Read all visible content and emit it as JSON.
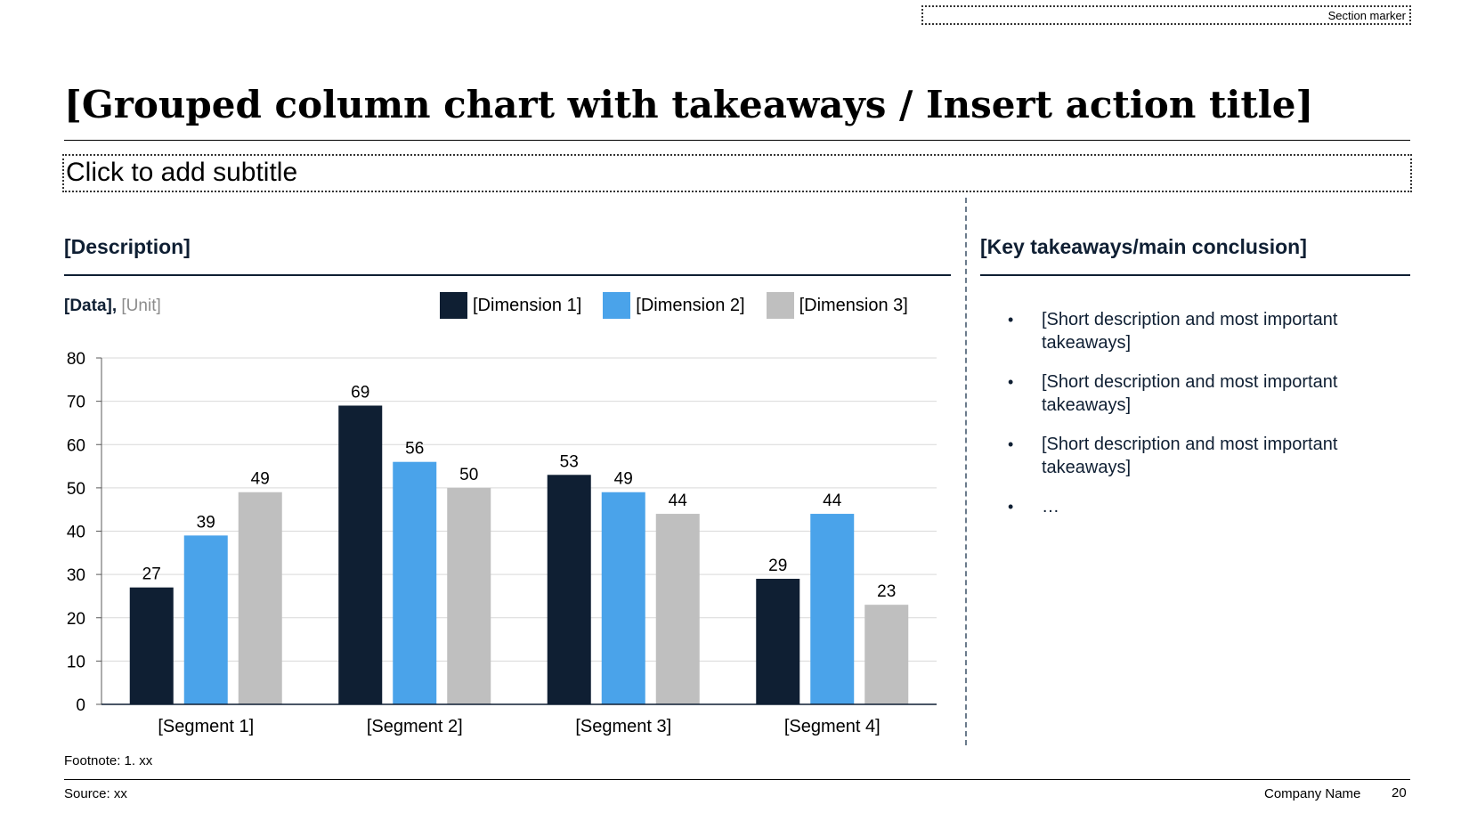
{
  "header": {
    "section_marker": "Section marker",
    "title": "[Grouped column chart with takeaways / Insert action title]",
    "subtitle": "Click to add subtitle"
  },
  "left_panel": {
    "heading": "[Description]",
    "data_label": "[Data],",
    "unit_label": "[Unit]"
  },
  "right_panel": {
    "heading": "[Key takeaways/main conclusion]",
    "bullets": [
      "[Short description and most important takeaways]",
      "[Short description and most important takeaways]",
      "[Short description and most important takeaways]",
      "…"
    ],
    "bullet_glyph": "•"
  },
  "chart_data": {
    "type": "bar",
    "categories": [
      "[Segment 1]",
      "[Segment 2]",
      "[Segment 3]",
      "[Segment 4]"
    ],
    "series": [
      {
        "name": "[Dimension 1]",
        "values": [
          27,
          69,
          53,
          29
        ],
        "color": "#0f1f33"
      },
      {
        "name": "[Dimension 2]",
        "values": [
          39,
          56,
          49,
          44
        ],
        "color": "#4aa3ea"
      },
      {
        "name": "[Dimension 3]",
        "values": [
          49,
          50,
          44,
          23
        ],
        "color": "#bfbfbf"
      }
    ],
    "ylim": [
      0,
      80
    ],
    "yticks": [
      0,
      10,
      20,
      30,
      40,
      50,
      60,
      70,
      80
    ],
    "grid": true,
    "legend_position": "top-right",
    "data_labels": true
  },
  "footer": {
    "footnote": "Footnote: 1. xx",
    "source": "Source: xx",
    "company": "Company Name",
    "page_number": "20"
  }
}
